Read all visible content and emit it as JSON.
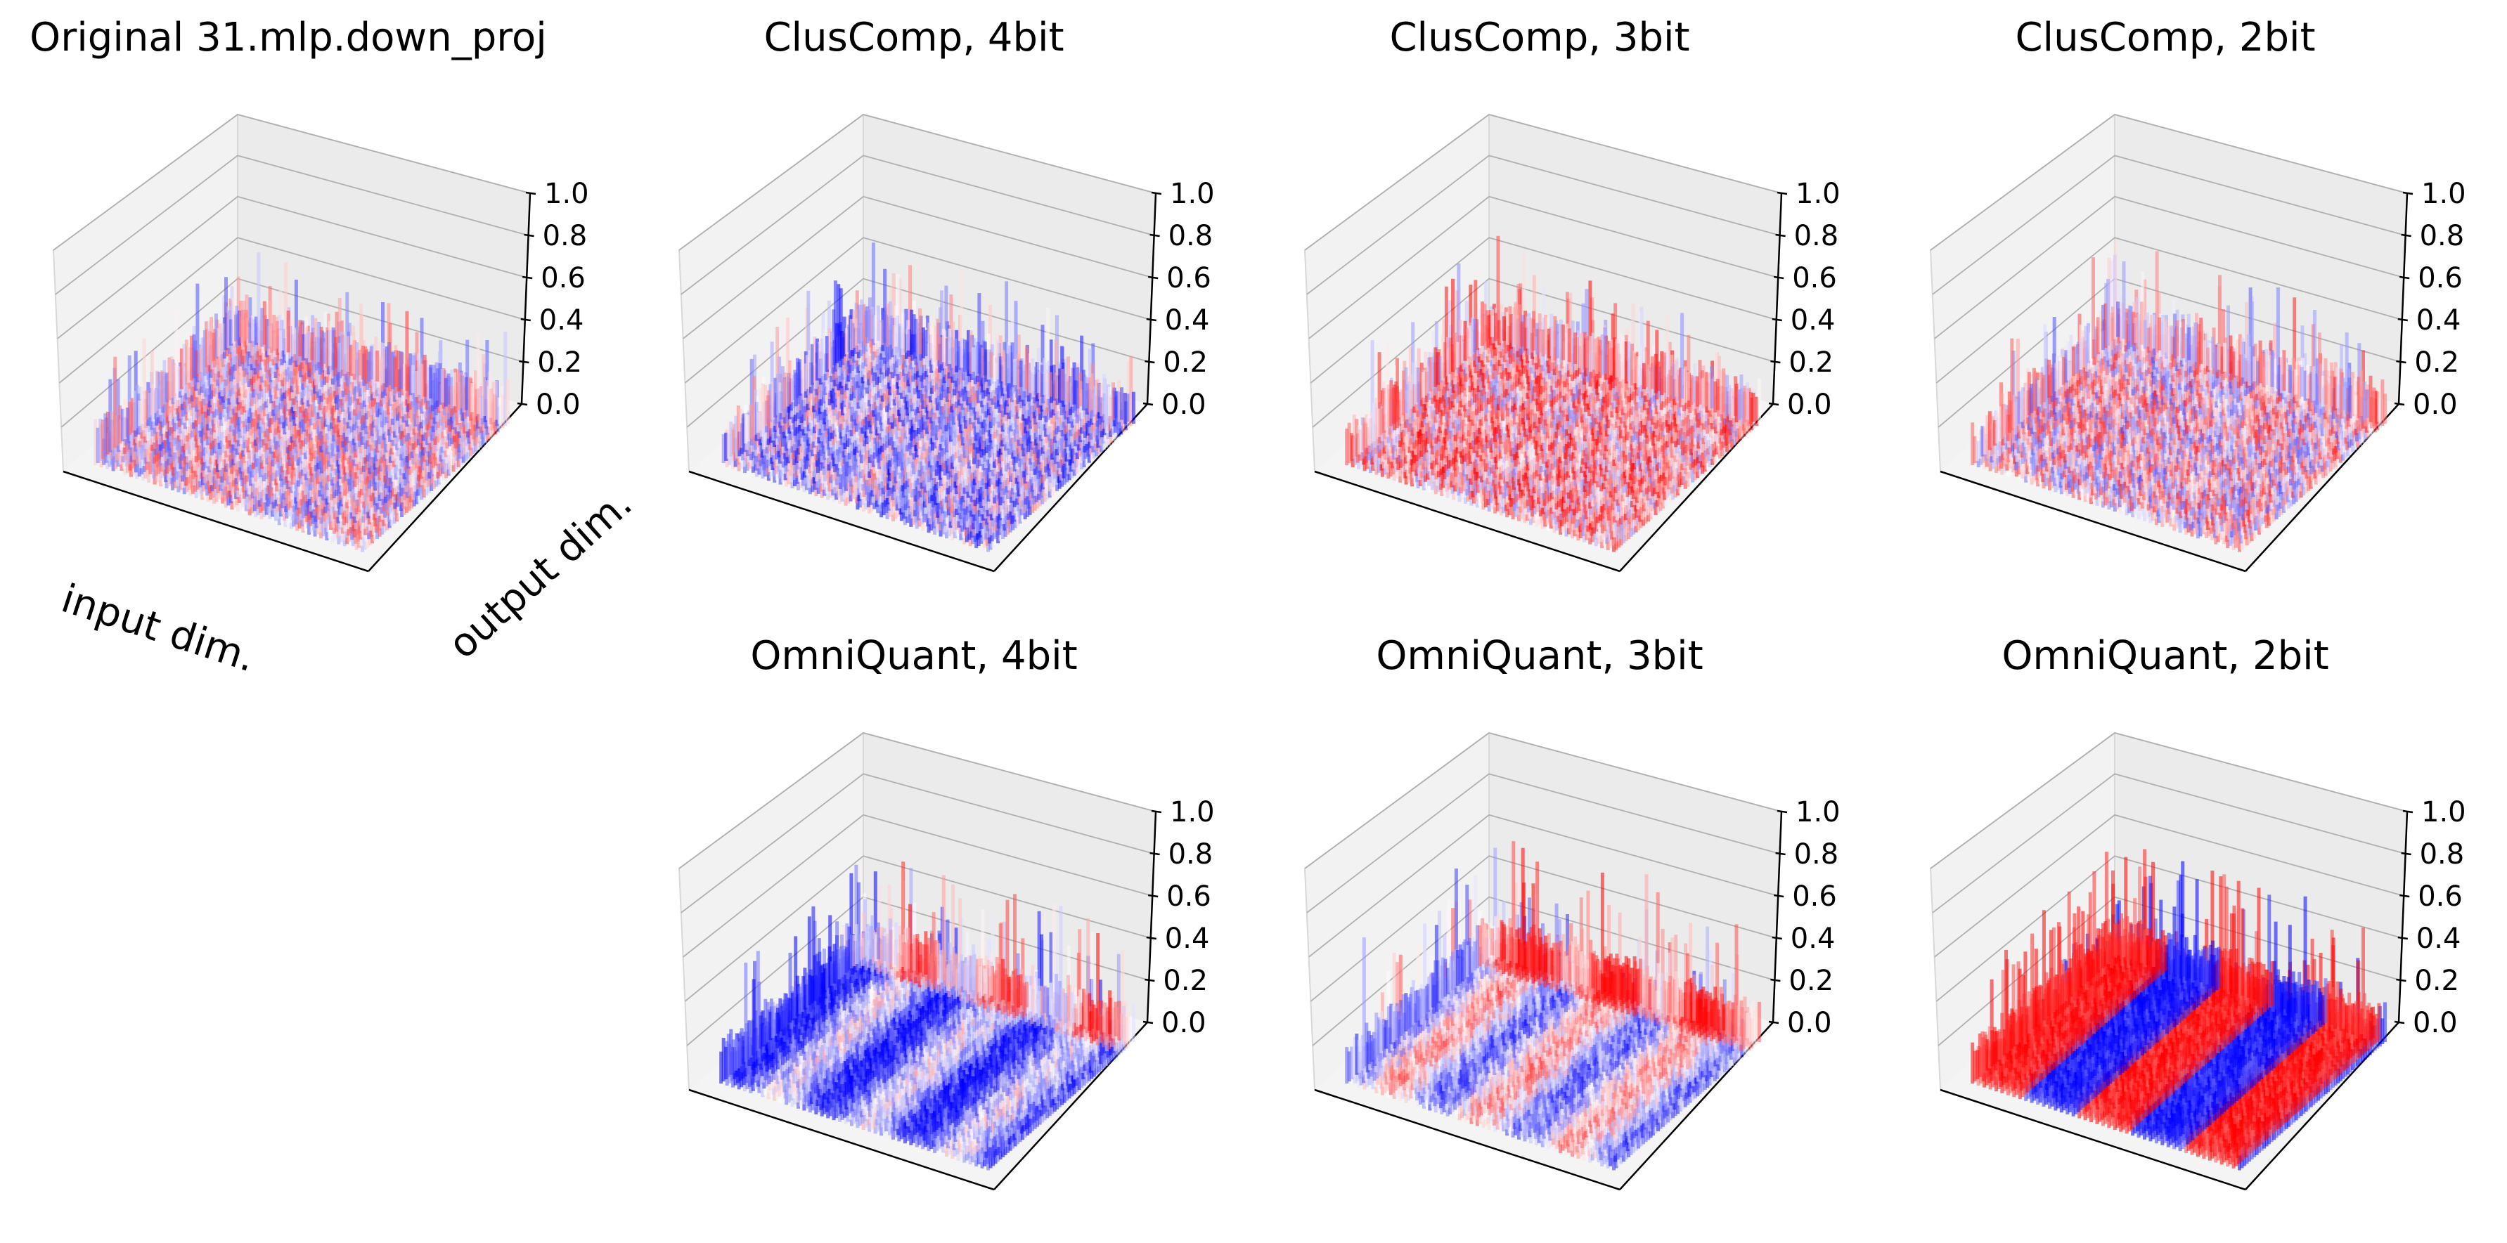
{
  "figure_title": "",
  "colors": {
    "positive": "#ff0000",
    "negative": "#0000ff",
    "pane_back": "#f2f2f2",
    "pane_side": "#ebebeb",
    "pane_floor": "#f4f4f4",
    "grid": "#b0b0b0",
    "axis": "#000000"
  },
  "chart_data": [
    {
      "type": "surface3d",
      "title": "Original 31.mlp.down_proj",
      "xlabel": "input dim.",
      "ylabel": "output dim.",
      "zlim": [
        0.0,
        1.0
      ],
      "zticks": [
        "0.0",
        "0.2",
        "0.4",
        "0.6",
        "0.8",
        "1.0"
      ],
      "grid": true,
      "colormap": "bwr",
      "surface_mean": 0.2,
      "pattern": "noise",
      "bias": 0.0,
      "spike_peak": 0.45
    },
    {
      "type": "surface3d",
      "title": "ClusComp, 4bit",
      "xlabel": "",
      "ylabel": "",
      "zlim": [
        0.0,
        1.0
      ],
      "zticks": [
        "0.0",
        "0.2",
        "0.4",
        "0.6",
        "0.8",
        "1.0"
      ],
      "grid": true,
      "colormap": "bwr",
      "surface_mean": 0.2,
      "pattern": "noise",
      "bias": -0.12,
      "spike_peak": 0.5
    },
    {
      "type": "surface3d",
      "title": "ClusComp, 3bit",
      "xlabel": "",
      "ylabel": "",
      "zlim": [
        0.0,
        1.0
      ],
      "zticks": [
        "0.0",
        "0.2",
        "0.4",
        "0.6",
        "0.8",
        "1.0"
      ],
      "grid": true,
      "colormap": "bwr",
      "surface_mean": 0.2,
      "pattern": "noise",
      "bias": 0.15,
      "spike_peak": 0.5
    },
    {
      "type": "surface3d",
      "title": "ClusComp, 2bit",
      "xlabel": "",
      "ylabel": "",
      "zlim": [
        0.0,
        1.0
      ],
      "zticks": [
        "0.0",
        "0.2",
        "0.4",
        "0.6",
        "0.8",
        "1.0"
      ],
      "grid": true,
      "colormap": "bwr",
      "surface_mean": 0.2,
      "pattern": "noise",
      "bias": 0.05,
      "spike_peak": 0.5
    },
    {
      "type": "surface3d",
      "title": "OmniQuant, 4bit",
      "xlabel": "",
      "ylabel": "",
      "zlim": [
        0.0,
        1.0
      ],
      "zticks": [
        "0.0",
        "0.2",
        "0.4",
        "0.6",
        "0.8",
        "1.0"
      ],
      "grid": true,
      "colormap": "bwr",
      "surface_mean": 0.2,
      "pattern": "stripes",
      "bias": -0.25,
      "spike_peak": 0.55
    },
    {
      "type": "surface3d",
      "title": "OmniQuant, 3bit",
      "xlabel": "",
      "ylabel": "",
      "zlim": [
        0.0,
        1.0
      ],
      "zticks": [
        "0.0",
        "0.2",
        "0.4",
        "0.6",
        "0.8",
        "1.0"
      ],
      "grid": true,
      "colormap": "bwr",
      "surface_mean": 0.2,
      "pattern": "stripes",
      "bias": -0.05,
      "spike_peak": 0.6
    },
    {
      "type": "surface3d",
      "title": "OmniQuant, 2bit",
      "xlabel": "",
      "ylabel": "",
      "zlim": [
        0.0,
        1.0
      ],
      "zticks": [
        "0.0",
        "0.2",
        "0.4",
        "0.6",
        "0.8",
        "1.0"
      ],
      "grid": true,
      "colormap": "bwr",
      "surface_mean": 0.2,
      "pattern": "bands",
      "bias": -0.1,
      "spike_peak": 0.6
    }
  ]
}
